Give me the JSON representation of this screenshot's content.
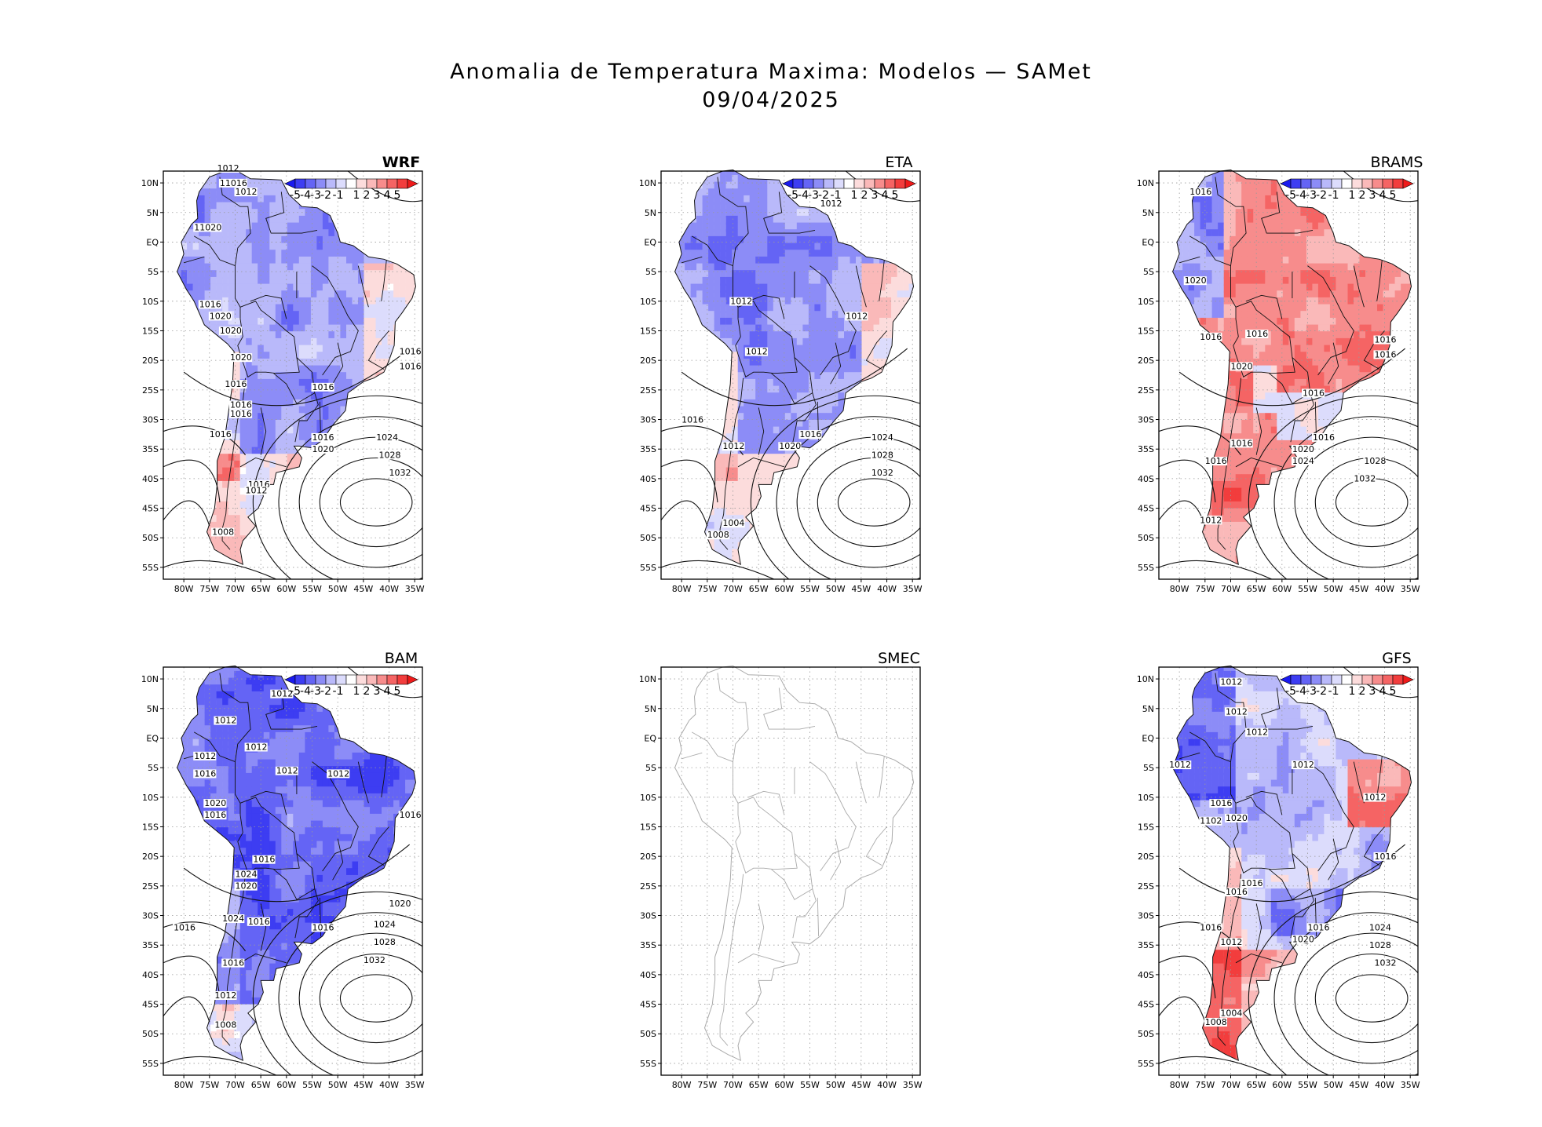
{
  "figure": {
    "title_line1": "Anomalia de Temperatura Maxima: Modelos — SAMet",
    "title_line2": "09/04/2025"
  },
  "axes": {
    "lat_ticks": [
      "10N",
      "5N",
      "EQ",
      "5S",
      "10S",
      "15S",
      "20S",
      "25S",
      "30S",
      "35S",
      "40S",
      "45S",
      "50S",
      "55S"
    ],
    "lon_ticks": [
      "80W",
      "75W",
      "70W",
      "65W",
      "60W",
      "55W",
      "50W",
      "45W",
      "40W",
      "35W"
    ]
  },
  "colorbar": {
    "labels": [
      "-5",
      "-4",
      "-3",
      "-2",
      "-1",
      "1",
      "2",
      "3",
      "4",
      "5"
    ],
    "colors": [
      "#1a1aef",
      "#3d3df2",
      "#6464f5",
      "#8c8cf7",
      "#b9b9fa",
      "#dcdcfc",
      "#ffffff",
      "#fcdcdc",
      "#fab9b9",
      "#f78c8c",
      "#f56464",
      "#f23d3d",
      "#ef1a1a"
    ]
  },
  "panels": [
    {
      "name": "WRF",
      "bold": true,
      "style": "blue",
      "isobars": [
        {
          "t": "1012",
          "lon": -73.5,
          "lat": 12
        },
        {
          "t": "11016",
          "lon": -73,
          "lat": 9.5
        },
        {
          "t": "1012",
          "lon": -70,
          "lat": 8
        },
        {
          "t": "11020",
          "lon": -78,
          "lat": 2
        },
        {
          "t": "1016",
          "lon": -77,
          "lat": -11
        },
        {
          "t": "1020",
          "lon": -75,
          "lat": -13
        },
        {
          "t": "1020",
          "lon": -73,
          "lat": -15.5
        },
        {
          "t": "1020",
          "lon": -71,
          "lat": -20
        },
        {
          "t": "1016",
          "lon": -72,
          "lat": -24.5
        },
        {
          "t": "1016",
          "lon": -71,
          "lat": -28
        },
        {
          "t": "1016",
          "lon": -71,
          "lat": -29.5
        },
        {
          "t": "1016",
          "lon": -55,
          "lat": -25
        },
        {
          "t": "1016",
          "lon": -75,
          "lat": -33
        },
        {
          "t": "1016",
          "lon": -55,
          "lat": -33.5
        },
        {
          "t": "1020",
          "lon": -55,
          "lat": -35.5
        },
        {
          "t": "1024",
          "lon": -42.5,
          "lat": -33.5
        },
        {
          "t": "1028",
          "lon": -42,
          "lat": -36.5
        },
        {
          "t": "1032",
          "lon": -40,
          "lat": -39.5
        },
        {
          "t": "1016",
          "lon": -67.5,
          "lat": -41.5
        },
        {
          "t": "1012",
          "lon": -68,
          "lat": -42.5
        },
        {
          "t": "1008",
          "lon": -74.5,
          "lat": -49.5
        },
        {
          "t": "1016",
          "lon": -38,
          "lat": -19
        },
        {
          "t": "1016",
          "lon": -38,
          "lat": -21.5
        }
      ]
    },
    {
      "name": "ETA",
      "bold": false,
      "style": "blue",
      "isobars": [
        {
          "t": "1012",
          "lon": -53,
          "lat": 6
        },
        {
          "t": "1012",
          "lon": -70.5,
          "lat": -10.5
        },
        {
          "t": "1012",
          "lon": -67.5,
          "lat": -19
        },
        {
          "t": "1012",
          "lon": -48,
          "lat": -13
        },
        {
          "t": "1016",
          "lon": -80,
          "lat": -30.5
        },
        {
          "t": "1016",
          "lon": -57,
          "lat": -33
        },
        {
          "t": "1020",
          "lon": -61,
          "lat": -35
        },
        {
          "t": "1024",
          "lon": -43,
          "lat": -33.5
        },
        {
          "t": "1028",
          "lon": -43,
          "lat": -36.5
        },
        {
          "t": "1032",
          "lon": -43,
          "lat": -39.5
        },
        {
          "t": "1012",
          "lon": -72,
          "lat": -35
        },
        {
          "t": "1004",
          "lon": -72,
          "lat": -48
        },
        {
          "t": "1008",
          "lon": -75,
          "lat": -50
        }
      ]
    },
    {
      "name": "BRAMS",
      "bold": false,
      "style": "red",
      "isobars": [
        {
          "t": "1016",
          "lon": -78,
          "lat": 8
        },
        {
          "t": "1020",
          "lon": -79,
          "lat": -7
        },
        {
          "t": "1016",
          "lon": -76,
          "lat": -16.5
        },
        {
          "t": "1016",
          "lon": -67,
          "lat": -16
        },
        {
          "t": "1020",
          "lon": -70,
          "lat": -21.5
        },
        {
          "t": "1016",
          "lon": -42,
          "lat": -17
        },
        {
          "t": "1016",
          "lon": -42,
          "lat": -19.5
        },
        {
          "t": "1016",
          "lon": -56,
          "lat": -26
        },
        {
          "t": "1016",
          "lon": -54,
          "lat": -33.5
        },
        {
          "t": "1016",
          "lon": -70,
          "lat": -34.5
        },
        {
          "t": "1020",
          "lon": -58,
          "lat": -35.5
        },
        {
          "t": "1024",
          "lon": -58,
          "lat": -37.5
        },
        {
          "t": "1028",
          "lon": -44,
          "lat": -37.5
        },
        {
          "t": "1032",
          "lon": -46,
          "lat": -40.5
        },
        {
          "t": "1016",
          "lon": -75,
          "lat": -37.5
        },
        {
          "t": "1012",
          "lon": -76,
          "lat": -47.5
        }
      ]
    },
    {
      "name": "BAM",
      "bold": false,
      "style": "darkblue",
      "isobars": [
        {
          "t": "1012",
          "lon": -74,
          "lat": 2.5
        },
        {
          "t": "1012",
          "lon": -68,
          "lat": -2
        },
        {
          "t": "1012",
          "lon": -78,
          "lat": -3.5
        },
        {
          "t": "1016",
          "lon": -78,
          "lat": -6.5
        },
        {
          "t": "1012",
          "lon": -52,
          "lat": -6.5
        },
        {
          "t": "1012",
          "lon": -62,
          "lat": -6
        },
        {
          "t": "1012",
          "lon": -63,
          "lat": 7
        },
        {
          "t": "1020",
          "lon": -76,
          "lat": -11.5
        },
        {
          "t": "1016",
          "lon": -76,
          "lat": -13.5
        },
        {
          "t": "1016",
          "lon": -66.5,
          "lat": -21
        },
        {
          "t": "1016",
          "lon": -38,
          "lat": -13.5
        },
        {
          "t": "1024",
          "lon": -70,
          "lat": -23.5
        },
        {
          "t": "1020",
          "lon": -70,
          "lat": -25.5
        },
        {
          "t": "1024",
          "lon": -72.5,
          "lat": -31
        },
        {
          "t": "1016",
          "lon": -67.5,
          "lat": -31.5
        },
        {
          "t": "1016",
          "lon": -55,
          "lat": -32.5
        },
        {
          "t": "1016",
          "lon": -82,
          "lat": -32.5
        },
        {
          "t": "1020",
          "lon": -40,
          "lat": -28.5
        },
        {
          "t": "1024",
          "lon": -43,
          "lat": -32
        },
        {
          "t": "1028",
          "lon": -43,
          "lat": -35
        },
        {
          "t": "1032",
          "lon": -45,
          "lat": -38
        },
        {
          "t": "1016",
          "lon": -72.5,
          "lat": -38.5
        },
        {
          "t": "1012",
          "lon": -74,
          "lat": -44
        },
        {
          "t": "1008",
          "lon": -74,
          "lat": -49
        }
      ]
    },
    {
      "name": "SMEC",
      "bold": false,
      "style": "none",
      "isobars": []
    },
    {
      "name": "GFS",
      "bold": false,
      "style": "mixed",
      "isobars": [
        {
          "t": "1012",
          "lon": -72,
          "lat": 9
        },
        {
          "t": "1012",
          "lon": -71,
          "lat": 4
        },
        {
          "t": "1012",
          "lon": -67,
          "lat": 0.5
        },
        {
          "t": "1012",
          "lon": -82,
          "lat": -5
        },
        {
          "t": "1012",
          "lon": -58,
          "lat": -5
        },
        {
          "t": "1012",
          "lon": -44,
          "lat": -10.5
        },
        {
          "t": "1016",
          "lon": -74,
          "lat": -11.5
        },
        {
          "t": "1102",
          "lon": -76,
          "lat": -14.5
        },
        {
          "t": "1020",
          "lon": -71,
          "lat": -14
        },
        {
          "t": "1016",
          "lon": -42,
          "lat": -20.5
        },
        {
          "t": "1016",
          "lon": -68,
          "lat": -25
        },
        {
          "t": "1016",
          "lon": -71,
          "lat": -26.5
        },
        {
          "t": "1016",
          "lon": -55,
          "lat": -32.5
        },
        {
          "t": "1016",
          "lon": -76,
          "lat": -32.5
        },
        {
          "t": "1020",
          "lon": -58,
          "lat": -34.5
        },
        {
          "t": "1012",
          "lon": -72,
          "lat": -35
        },
        {
          "t": "1024",
          "lon": -43,
          "lat": -32.5
        },
        {
          "t": "1028",
          "lon": -43,
          "lat": -35.5
        },
        {
          "t": "1032",
          "lon": -42,
          "lat": -38.5
        },
        {
          "t": "1004",
          "lon": -72,
          "lat": -47
        },
        {
          "t": "1008",
          "lon": -75,
          "lat": -48.5
        }
      ]
    }
  ]
}
